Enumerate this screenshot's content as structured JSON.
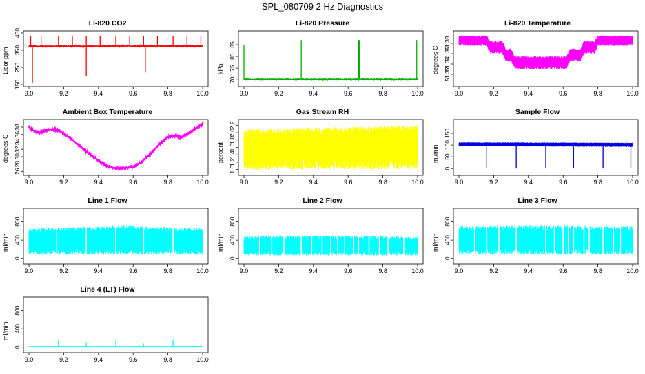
{
  "title": "SPL_080709  2 Hz Diagnostics",
  "chart_data": [
    {
      "id": "co2",
      "type": "line",
      "title": "Li-820 CO2",
      "ylabel": "Licor ppm",
      "color": "#ff0000",
      "xlim": [
        9.0,
        10.0
      ],
      "ylim": [
        150,
        450
      ],
      "xticks": [
        "9.0",
        "9.2",
        "9.4",
        "9.6",
        "9.8",
        "10.0"
      ],
      "yticks": [
        "150",
        "250",
        "350",
        "450"
      ],
      "series": {
        "x": [
          9.0,
          10.0
        ],
        "y": [
          373,
          374
        ]
      },
      "spikes": [
        {
          "x": 9.01,
          "y": 430
        },
        {
          "x": 9.02,
          "y": 160
        },
        {
          "x": 9.07,
          "y": 430
        },
        {
          "x": 9.17,
          "y": 430
        },
        {
          "x": 9.25,
          "y": 430
        },
        {
          "x": 9.33,
          "y": 200
        },
        {
          "x": 9.33,
          "y": 430
        },
        {
          "x": 9.41,
          "y": 430
        },
        {
          "x": 9.5,
          "y": 430
        },
        {
          "x": 9.58,
          "y": 430
        },
        {
          "x": 9.66,
          "y": 430
        },
        {
          "x": 9.67,
          "y": 220
        },
        {
          "x": 9.74,
          "y": 430
        },
        {
          "x": 9.83,
          "y": 430
        },
        {
          "x": 9.91,
          "y": 430
        },
        {
          "x": 9.99,
          "y": 430
        }
      ]
    },
    {
      "id": "pressure",
      "type": "line",
      "title": "Li-820 Pressure",
      "ylabel": "kPa",
      "color": "#00b000",
      "xlim": [
        9.0,
        10.0
      ],
      "ylim": [
        68,
        90
      ],
      "xticks": [
        "9.0",
        "9.2",
        "9.4",
        "9.6",
        "9.8",
        "10.0"
      ],
      "yticks": [
        "70",
        "75",
        "80",
        "85"
      ],
      "series": {
        "x": [
          9.0,
          10.0
        ],
        "y": [
          70.2,
          70.2
        ]
      },
      "spikes": [
        {
          "x": 9.0,
          "y": 85
        },
        {
          "x": 9.33,
          "y": 87
        },
        {
          "x": 9.66,
          "y": 87
        },
        {
          "x": 9.665,
          "y": 87
        },
        {
          "x": 9.995,
          "y": 87
        }
      ]
    },
    {
      "id": "temperature",
      "type": "line",
      "title": "Li-820 Temperature",
      "ylabel": "degrees C",
      "color": "#ff00ff",
      "xlim": [
        9.0,
        10.0
      ],
      "ylim": [
        51.3,
        51.4
      ],
      "xticks": [
        "9.0",
        "9.2",
        "9.4",
        "9.6",
        "9.8",
        "10.0"
      ],
      "yticks": [
        "51.32",
        "51.34",
        "51.36",
        "51.38"
      ],
      "series": {
        "x": [
          9.0,
          9.16,
          9.18,
          9.25,
          9.27,
          9.3,
          9.32,
          9.62,
          9.64,
          9.7,
          9.72,
          9.78,
          9.8,
          10.0
        ],
        "lo": [
          51.375,
          51.375,
          51.36,
          51.36,
          51.345,
          51.345,
          51.33,
          51.33,
          51.345,
          51.345,
          51.36,
          51.36,
          51.375,
          51.375
        ],
        "hi": [
          51.395,
          51.395,
          51.385,
          51.385,
          51.37,
          51.37,
          51.355,
          51.355,
          51.37,
          51.37,
          51.385,
          51.385,
          51.395,
          51.395
        ]
      }
    },
    {
      "id": "ambient",
      "type": "line",
      "title": "Ambient Box Temperature",
      "ylabel": "degrees C",
      "color": "#ff00ff",
      "xlim": [
        9.0,
        10.0
      ],
      "ylim": [
        25.5,
        39.5
      ],
      "xticks": [
        "9.0",
        "9.2",
        "9.4",
        "9.6",
        "9.8",
        "10.0"
      ],
      "yticks": [
        "26",
        "28",
        "30",
        "32",
        "34",
        "36",
        "38"
      ],
      "series": {
        "x": [
          9.0,
          9.03,
          9.06,
          9.09,
          9.12,
          9.16,
          9.2,
          9.25,
          9.3,
          9.35,
          9.4,
          9.45,
          9.5,
          9.55,
          9.6,
          9.65,
          9.7,
          9.75,
          9.8,
          9.84,
          9.88,
          9.92,
          9.96,
          10.0
        ],
        "y": [
          38.0,
          37.0,
          36.5,
          37.0,
          37.4,
          37.3,
          36.3,
          34.6,
          32.6,
          30.6,
          28.9,
          27.5,
          26.8,
          26.9,
          27.2,
          28.6,
          30.8,
          33.3,
          35.3,
          35.6,
          35.2,
          36.4,
          37.6,
          38.8
        ]
      }
    },
    {
      "id": "rh",
      "type": "line",
      "title": "Gas Stream RH",
      "ylabel": "percent",
      "color": "#ffff00",
      "xlim": [
        9.0,
        10.0
      ],
      "ylim": [
        0.9,
        2.3
      ],
      "xticks": [
        "9.0",
        "9.2",
        "9.4",
        "9.6",
        "9.8",
        "10.0"
      ],
      "yticks": [
        "1.0",
        "1.2",
        "1.4",
        "1.6",
        "1.8",
        "2.0",
        "2.2"
      ],
      "series": {
        "x": [
          9.0,
          10.0
        ],
        "lo": [
          1.0,
          1.0
        ],
        "hi": [
          2.1,
          2.2
        ]
      }
    },
    {
      "id": "sampleflow",
      "type": "line",
      "title": "Sample Flow",
      "ylabel": "ml/min",
      "color": "#0000e0",
      "xlim": [
        9.0,
        10.0
      ],
      "ylim": [
        -20,
        200
      ],
      "xticks": [
        "9.0",
        "9.2",
        "9.4",
        "9.6",
        "9.8",
        "10.0"
      ],
      "yticks": [
        "0",
        "50",
        "100",
        "150"
      ],
      "series": {
        "x": [
          9.0,
          10.0
        ],
        "lo": [
          95,
          92
        ],
        "hi": [
          112,
          110
        ]
      },
      "spikes": [
        {
          "x": 9.16,
          "y": 0
        },
        {
          "x": 9.33,
          "y": 0
        },
        {
          "x": 9.5,
          "y": 0
        },
        {
          "x": 9.66,
          "y": 0
        },
        {
          "x": 9.83,
          "y": 0
        },
        {
          "x": 9.99,
          "y": 0
        }
      ]
    },
    {
      "id": "line1",
      "type": "line",
      "title": "Line 1 Flow",
      "ylabel": "ml/min",
      "color": "#00ffff",
      "xlim": [
        9.0,
        10.0
      ],
      "ylim": [
        -80,
        1050
      ],
      "xticks": [
        "9.0",
        "9.2",
        "9.4",
        "9.6",
        "9.8",
        "10.0"
      ],
      "yticks": [
        "0",
        "400",
        "800"
      ],
      "series": {
        "x": [
          9.0,
          9.5,
          10.0
        ],
        "lo": [
          80,
          80,
          80
        ],
        "hi": [
          650,
          720,
          660
        ]
      },
      "gaps": [
        9.16,
        9.33,
        9.5,
        9.66,
        9.83
      ]
    },
    {
      "id": "line2",
      "type": "line",
      "title": "Line 2 Flow",
      "ylabel": "ml/min",
      "color": "#00ffff",
      "xlim": [
        9.0,
        10.0
      ],
      "ylim": [
        -80,
        1050
      ],
      "xticks": [
        "9.0",
        "9.2",
        "9.4",
        "9.6",
        "9.8",
        "10.0"
      ],
      "yticks": [
        "0",
        "400",
        "800"
      ],
      "series": {
        "x": [
          9.0,
          9.5,
          10.0
        ],
        "lo": [
          60,
          60,
          60
        ],
        "hi": [
          480,
          500,
          470
        ]
      },
      "gaps": [
        9.09,
        9.16,
        9.23,
        9.33,
        9.39,
        9.45,
        9.5,
        9.54,
        9.58,
        9.63,
        9.66,
        9.72,
        9.78,
        9.83,
        9.92
      ]
    },
    {
      "id": "line3",
      "type": "line",
      "title": "Line 3 Flow",
      "ylabel": "ml/min",
      "color": "#00ffff",
      "xlim": [
        9.0,
        10.0
      ],
      "ylim": [
        -80,
        1050
      ],
      "xticks": [
        "9.0",
        "9.2",
        "9.4",
        "9.6",
        "9.8",
        "10.0"
      ],
      "yticks": [
        "0",
        "400",
        "800"
      ],
      "series": {
        "x": [
          9.0,
          9.5,
          10.0
        ],
        "lo": [
          80,
          80,
          80
        ],
        "hi": [
          700,
          720,
          700
        ]
      },
      "gaps": [
        9.09,
        9.16,
        9.23,
        9.33,
        9.5,
        9.55,
        9.6,
        9.63,
        9.66,
        9.72,
        9.75,
        9.83,
        9.89,
        9.93
      ]
    },
    {
      "id": "line4",
      "type": "line",
      "title": "Line 4 (LT) Flow",
      "ylabel": "ml/min",
      "color": "#00ffff",
      "xlim": [
        9.0,
        10.0
      ],
      "ylim": [
        -80,
        1050
      ],
      "xticks": [
        "9.0",
        "9.2",
        "9.4",
        "9.6",
        "9.8",
        "10.0"
      ],
      "yticks": [
        "0",
        "400",
        "800"
      ],
      "series": {
        "x": [
          9.0,
          10.0
        ],
        "lo": [
          5,
          5
        ],
        "hi": [
          25,
          25
        ]
      },
      "spikes": [
        {
          "x": 9.17,
          "y": 150
        },
        {
          "x": 9.33,
          "y": 90
        },
        {
          "x": 9.5,
          "y": 160
        },
        {
          "x": 9.66,
          "y": 80
        },
        {
          "x": 9.83,
          "y": 170
        },
        {
          "x": 9.99,
          "y": 60
        }
      ]
    }
  ]
}
